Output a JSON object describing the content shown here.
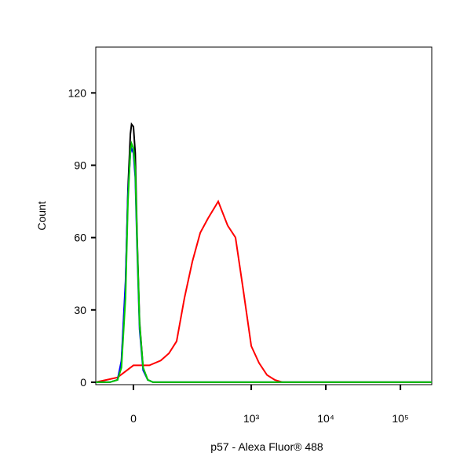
{
  "chart_data": {
    "type": "line",
    "xlabel": "p57 - Alexa Fluor® 488",
    "ylabel": "Count",
    "xscale": "logicle",
    "xlim": [
      -76,
      263000
    ],
    "xticks": [
      0,
      {
        "value": 1000,
        "label": "10³"
      },
      {
        "value": 10000,
        "label": "10⁴"
      },
      {
        "value": 100000,
        "label": "10⁵"
      }
    ],
    "ylim": [
      -1,
      139
    ],
    "yticks": [
      0,
      30,
      60,
      90,
      120
    ],
    "series": [
      {
        "color": "#ff0000",
        "x": [
          -76,
          -27,
          0,
          27,
          50,
          70,
          93,
          122,
          158,
          204,
          261,
          359,
          482,
          614,
          783,
          1000,
          1274,
          1624,
          2067,
          2634,
          263000
        ],
        "values": [
          0,
          2,
          7,
          7,
          9,
          12,
          17,
          35,
          50,
          62,
          68,
          75,
          65,
          60,
          38,
          15,
          8,
          3,
          1,
          0,
          0
        ]
      },
      {
        "color": "#000000",
        "x": [
          -76,
          -42,
          -27,
          -20,
          -13,
          -9,
          -5,
          -3,
          0,
          3,
          6,
          10,
          16,
          24,
          34,
          50,
          180,
          1000,
          10000,
          263000
        ],
        "values": [
          0,
          0,
          1,
          8,
          40,
          80,
          103,
          107,
          106,
          95,
          60,
          25,
          6,
          1,
          0,
          0,
          0,
          0,
          0,
          0
        ]
      },
      {
        "color": "#0000ff",
        "x": [
          -76,
          -42,
          -27,
          -20,
          -13,
          -9,
          -5,
          -3,
          0,
          3,
          6,
          10,
          16,
          24,
          34,
          50,
          180,
          1000,
          10000,
          263000
        ],
        "values": [
          0,
          0,
          1,
          9,
          42,
          78,
          95,
          97,
          95,
          85,
          55,
          22,
          5,
          1,
          0,
          0,
          0,
          0,
          0,
          0
        ]
      },
      {
        "color": "#00cc00",
        "x": [
          -76,
          -42,
          -27,
          -20,
          -13,
          -9,
          -5,
          -3,
          0,
          3,
          6,
          10,
          16,
          24,
          34,
          50,
          180,
          1000,
          10000,
          263000
        ],
        "values": [
          0,
          0,
          1,
          6,
          35,
          75,
          96,
          99,
          97,
          88,
          58,
          24,
          6,
          1,
          0,
          0,
          0,
          0,
          0,
          0
        ]
      }
    ]
  }
}
